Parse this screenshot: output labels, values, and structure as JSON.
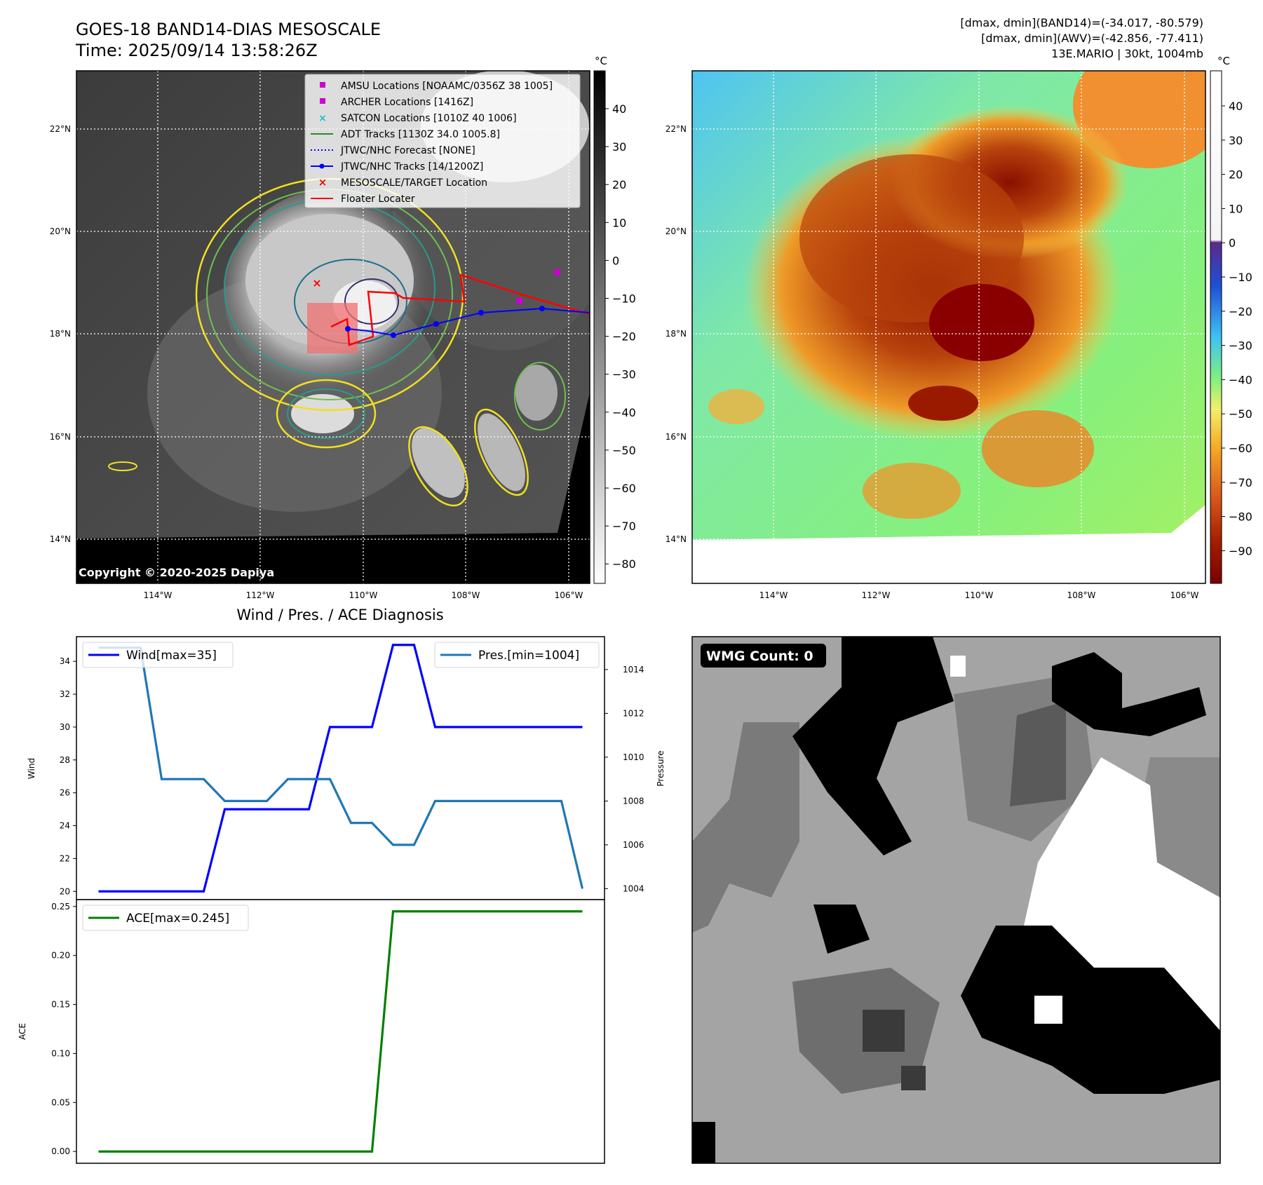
{
  "header": {
    "title_line1": "GOES-18 BAND14-DIAS MESOSCALE",
    "title_line2": "Time: 2025/09/14 13:58:26Z",
    "stats_line1": "[dmax, dmin](BAND14)=(-34.017, -80.579)",
    "stats_line2": "[dmax, dmin](AWV)=(-42.856, -77.411)",
    "stats_line3": "13E.MARIO | 30kt, 1004mb"
  },
  "map": {
    "lat_labels": [
      "22°N",
      "20°N",
      "18°N",
      "16°N",
      "14°N"
    ],
    "lon_labels": [
      "114°W",
      "112°W",
      "110°W",
      "108°W",
      "106°W"
    ],
    "copyright": "Copyright © 2020-2025 Dapiya",
    "legend": [
      {
        "label": "AMSU Locations [NOAAMC/0356Z 38 1005]",
        "marker": "square",
        "color": "#cc00cc"
      },
      {
        "label": "ARCHER Locations [1416Z]",
        "marker": "square",
        "color": "#cc00cc"
      },
      {
        "label": "SATCON Locations [1010Z 40 1006]",
        "marker": "x",
        "color": "#17bfbf"
      },
      {
        "label": "ADT Tracks [1130Z 34.0 1005.8]",
        "marker": "line",
        "color": "#2a8a2a"
      },
      {
        "label": "JTWC/NHC Forecast [NONE]",
        "marker": "dotted",
        "color": "#0000ff"
      },
      {
        "label": "JTWC/NHC Tracks [14/1200Z]",
        "marker": "line-dot",
        "color": "#0000ff"
      },
      {
        "label": "MESOSCALE/TARGET Location",
        "marker": "x",
        "color": "#ff0000"
      },
      {
        "label": "Floater Locater",
        "marker": "line",
        "color": "#ff0000"
      }
    ]
  },
  "colorbar_left": {
    "unit": "°C",
    "ticks": [
      "40",
      "30",
      "20",
      "10",
      "0",
      "−10",
      "−20",
      "−30",
      "−40",
      "−50",
      "−60",
      "−70",
      "−80"
    ]
  },
  "colorbar_right": {
    "unit": "°C",
    "ticks": [
      "40",
      "30",
      "20",
      "10",
      "0",
      "−10",
      "−20",
      "−30",
      "−40",
      "−50",
      "−60",
      "−70",
      "−80",
      "−90"
    ]
  },
  "wmg": {
    "label": "WMG Count: 0"
  },
  "chart_data": [
    {
      "type": "line",
      "title": "Wind / Pres. / ACE Diagnosis",
      "x": [
        0,
        1,
        2,
        3,
        4,
        5,
        6,
        7,
        8,
        9,
        10,
        11,
        12,
        13,
        14,
        15,
        16,
        17,
        18,
        19,
        20,
        21,
        22,
        23
      ],
      "series": [
        {
          "name": "Wind[max=35]",
          "axis": "left",
          "color": "#0000ff",
          "values": [
            20,
            20,
            20,
            20,
            20,
            20,
            25,
            25,
            25,
            25,
            25,
            30,
            30,
            30,
            35,
            35,
            30,
            30,
            30,
            30,
            30,
            30,
            30,
            30
          ]
        },
        {
          "name": "Pres.[min=1004]",
          "axis": "right",
          "color": "#1f77b4",
          "values": [
            1015,
            1015,
            1015,
            1009,
            1009,
            1009,
            1008,
            1008,
            1008,
            1009,
            1009,
            1009,
            1007,
            1007,
            1006,
            1006,
            1008,
            1008,
            1008,
            1008,
            1008,
            1008,
            1008,
            1004
          ]
        }
      ],
      "ylabel": "Wind",
      "y2label": "Pressure",
      "ylim": [
        19.5,
        35.5
      ],
      "y2lim": [
        1003.5,
        1015.5
      ],
      "yticks": [
        20,
        22,
        24,
        26,
        28,
        30,
        32,
        34
      ],
      "y2ticks": [
        1004,
        1006,
        1008,
        1010,
        1012,
        1014
      ]
    },
    {
      "type": "line",
      "x": [
        0,
        1,
        2,
        3,
        4,
        5,
        6,
        7,
        8,
        9,
        10,
        11,
        12,
        13,
        14,
        15,
        16,
        17,
        18,
        19,
        20,
        21,
        22,
        23
      ],
      "series": [
        {
          "name": "ACE[max=0.245]",
          "color": "#008000",
          "values": [
            0,
            0,
            0,
            0,
            0,
            0,
            0,
            0,
            0,
            0,
            0,
            0,
            0,
            0,
            0.245,
            0.245,
            0.245,
            0.245,
            0.245,
            0.245,
            0.245,
            0.245,
            0.245,
            0.245
          ]
        }
      ],
      "ylabel": "ACE",
      "ylim": [
        -0.012,
        0.257
      ],
      "yticks": [
        "0.00",
        "0.05",
        "0.10",
        "0.15",
        "0.20",
        "0.25"
      ]
    }
  ]
}
